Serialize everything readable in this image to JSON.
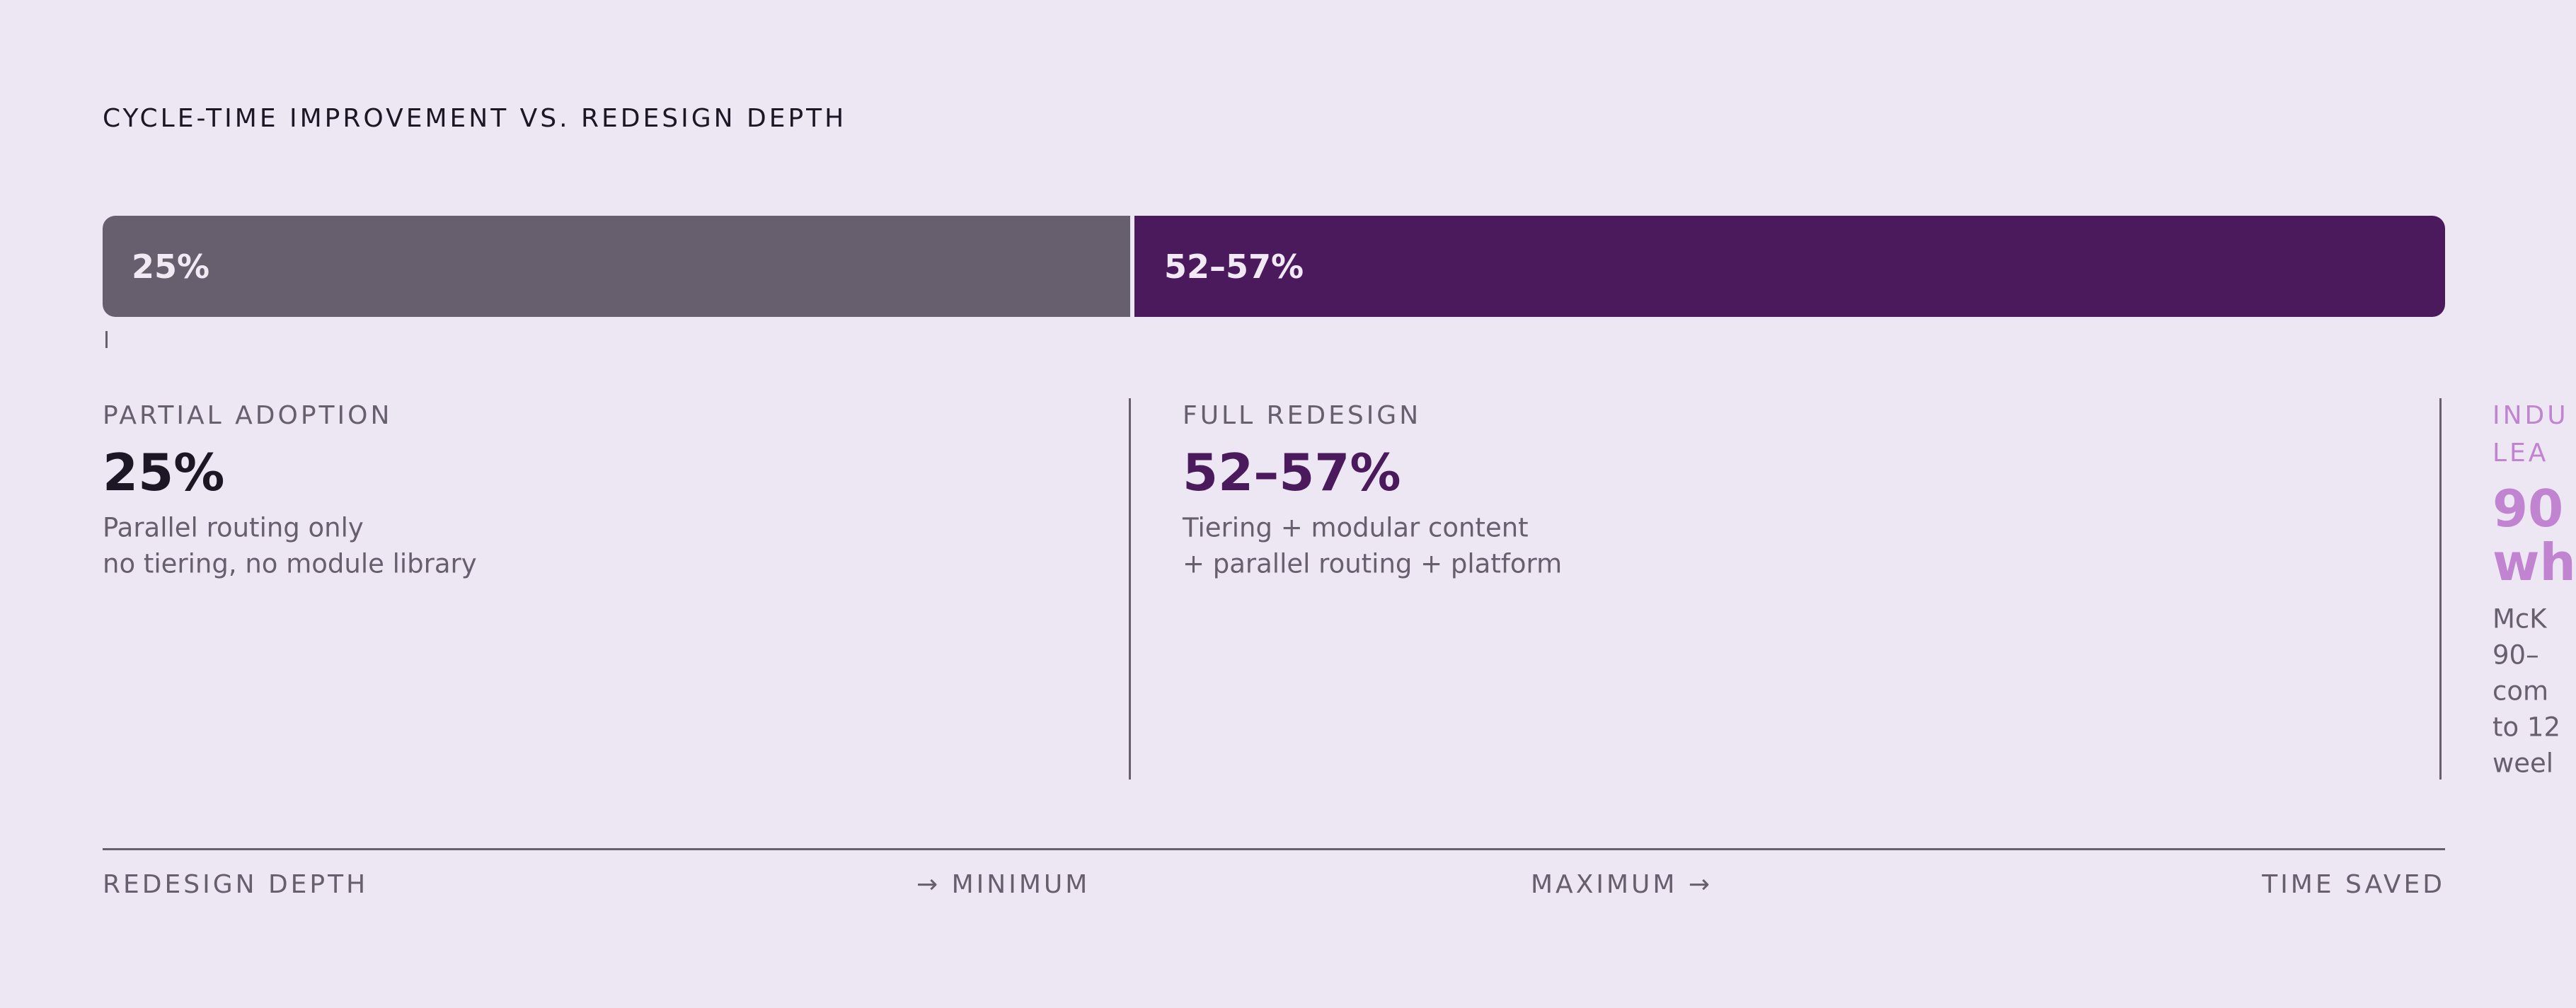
{
  "title": "CYCLE-TIME IMPROVEMENT VS. REDESIGN DEPTH",
  "bar": {
    "segments": [
      {
        "label": "25%"
      },
      {
        "label": "52–57%"
      }
    ]
  },
  "columns": [
    {
      "heading": [
        "PARTIAL ADOPTION"
      ],
      "value": [
        "25%"
      ],
      "lines": [
        "Parallel routing only",
        "no tiering, no module library"
      ]
    },
    {
      "heading": [
        "FULL REDESIGN"
      ],
      "value": [
        "52–57%"
      ],
      "lines": [
        "Tiering + modular content",
        "+ parallel routing + platform"
      ]
    },
    {
      "heading": [
        "INDU",
        "LEA"
      ],
      "value": [
        "90",
        "wh"
      ],
      "lines": [
        "McK",
        "90–",
        "com",
        "to 12",
        "weel"
      ]
    }
  ],
  "axis": {
    "left": "REDESIGN DEPTH",
    "min": "→ MINIMUM",
    "max": "MAXIMUM →",
    "right": "TIME SAVED"
  }
}
